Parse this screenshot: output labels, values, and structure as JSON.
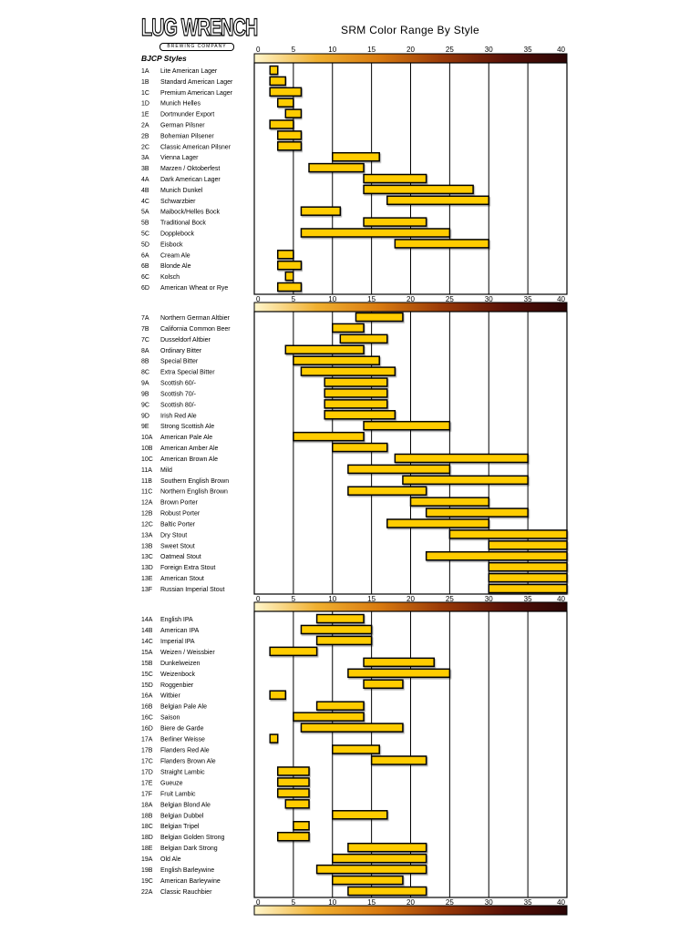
{
  "logo": {
    "main": "LUG WRENCH",
    "sub": "BREWING COMPANY"
  },
  "chart_data": {
    "type": "bar",
    "subtype": "floating-range-horizontal",
    "title": "SRM Color Range By Style",
    "category_header": "BJCP Styles",
    "xlim": [
      0,
      40
    ],
    "xticks": [
      0,
      5,
      10,
      15,
      20,
      25,
      30,
      35,
      40
    ],
    "grid": true,
    "colors": {
      "bar": "#ffcc00",
      "bar_outline": "#000000",
      "gradient": [
        "#fff6cc",
        "#f0b030",
        "#d87a10",
        "#9a3a08",
        "#5a1208",
        "#2a0505"
      ]
    },
    "panels": [
      {
        "rows": [
          {
            "code": "1A",
            "name": "Lite American Lager",
            "min": 2,
            "max": 3
          },
          {
            "code": "1B",
            "name": "Standard American Lager",
            "min": 2,
            "max": 4
          },
          {
            "code": "1C",
            "name": "Premium American Lager",
            "min": 2,
            "max": 6
          },
          {
            "code": "1D",
            "name": "Munich Helles",
            "min": 3,
            "max": 5
          },
          {
            "code": "1E",
            "name": "Dortmunder Export",
            "min": 4,
            "max": 6
          },
          {
            "code": "2A",
            "name": "German Pilsner",
            "min": 2,
            "max": 5
          },
          {
            "code": "2B",
            "name": "Bohemian Pilsener",
            "min": 3,
            "max": 6
          },
          {
            "code": "2C",
            "name": "Classic American Pilsner",
            "min": 3,
            "max": 6
          },
          {
            "code": "3A",
            "name": "Vienna Lager",
            "min": 10,
            "max": 16
          },
          {
            "code": "3B",
            "name": "Marzen / Oktoberfest",
            "min": 7,
            "max": 14
          },
          {
            "code": "4A",
            "name": "Dark American Lager",
            "min": 14,
            "max": 22
          },
          {
            "code": "4B",
            "name": "Munich Dunkel",
            "min": 14,
            "max": 28
          },
          {
            "code": "4C",
            "name": "Schwarzbier",
            "min": 17,
            "max": 30
          },
          {
            "code": "5A",
            "name": "Maibock/Helles Bock",
            "min": 6,
            "max": 11
          },
          {
            "code": "5B",
            "name": "Traditional Bock",
            "min": 14,
            "max": 22
          },
          {
            "code": "5C",
            "name": "Dopplebock",
            "min": 6,
            "max": 25
          },
          {
            "code": "5D",
            "name": "Eisbock",
            "min": 18,
            "max": 30
          },
          {
            "code": "6A",
            "name": "Cream Ale",
            "min": 3,
            "max": 5
          },
          {
            "code": "6B",
            "name": "Blonde Ale",
            "min": 3,
            "max": 6
          },
          {
            "code": "6C",
            "name": "Kolsch",
            "min": 4,
            "max": 5
          },
          {
            "code": "6D",
            "name": "American Wheat or Rye",
            "min": 3,
            "max": 6
          }
        ]
      },
      {
        "rows": [
          {
            "code": "7A",
            "name": "Northern German Altbier",
            "min": 13,
            "max": 19
          },
          {
            "code": "7B",
            "name": "California Common Beer",
            "min": 10,
            "max": 14
          },
          {
            "code": "7C",
            "name": "Dusseldorf Altbier",
            "min": 11,
            "max": 17
          },
          {
            "code": "8A",
            "name": "Ordinary Bitter",
            "min": 4,
            "max": 14
          },
          {
            "code": "8B",
            "name": "Special Bitter",
            "min": 5,
            "max": 16
          },
          {
            "code": "8C",
            "name": "Extra Special Bitter",
            "min": 6,
            "max": 18
          },
          {
            "code": "9A",
            "name": "Scottish 60/-",
            "min": 9,
            "max": 17
          },
          {
            "code": "9B",
            "name": "Scottish 70/-",
            "min": 9,
            "max": 17
          },
          {
            "code": "9C",
            "name": "Scottish 80/-",
            "min": 9,
            "max": 17
          },
          {
            "code": "9D",
            "name": "Irish Red Ale",
            "min": 9,
            "max": 18
          },
          {
            "code": "9E",
            "name": "Strong Scottish Ale",
            "min": 14,
            "max": 25
          },
          {
            "code": "10A",
            "name": "American Pale Ale",
            "min": 5,
            "max": 14
          },
          {
            "code": "10B",
            "name": "American Amber Ale",
            "min": 10,
            "max": 17
          },
          {
            "code": "10C",
            "name": "American Brown Ale",
            "min": 18,
            "max": 35
          },
          {
            "code": "11A",
            "name": "Mild",
            "min": 12,
            "max": 25
          },
          {
            "code": "11B",
            "name": "Southern English Brown",
            "min": 19,
            "max": 35
          },
          {
            "code": "11C",
            "name": "Northern English Brown",
            "min": 12,
            "max": 22
          },
          {
            "code": "12A",
            "name": "Brown Porter",
            "min": 20,
            "max": 30
          },
          {
            "code": "12B",
            "name": "Robust Porter",
            "min": 22,
            "max": 35
          },
          {
            "code": "12C",
            "name": "Baltic Porter",
            "min": 17,
            "max": 30
          },
          {
            "code": "13A",
            "name": "Dry Stout",
            "min": 25,
            "max": 40
          },
          {
            "code": "13B",
            "name": "Sweet Stout",
            "min": 30,
            "max": 40
          },
          {
            "code": "13C",
            "name": "Oatmeal Stout",
            "min": 22,
            "max": 40
          },
          {
            "code": "13D",
            "name": "Foreign Extra Stout",
            "min": 30,
            "max": 40
          },
          {
            "code": "13E",
            "name": "American Stout",
            "min": 30,
            "max": 40
          },
          {
            "code": "13F",
            "name": "Russian Imperial Stout",
            "min": 30,
            "max": 40
          }
        ]
      },
      {
        "rows": [
          {
            "code": "14A",
            "name": "English IPA",
            "min": 8,
            "max": 14
          },
          {
            "code": "14B",
            "name": "American IPA",
            "min": 6,
            "max": 15
          },
          {
            "code": "14C",
            "name": "Imperial IPA",
            "min": 8,
            "max": 15
          },
          {
            "code": "15A",
            "name": "Weizen / Weissbier",
            "min": 2,
            "max": 8
          },
          {
            "code": "15B",
            "name": "Dunkelweizen",
            "min": 14,
            "max": 23
          },
          {
            "code": "15C",
            "name": "Weizenbock",
            "min": 12,
            "max": 25
          },
          {
            "code": "15D",
            "name": "Roggenbier",
            "min": 14,
            "max": 19
          },
          {
            "code": "16A",
            "name": "Witbier",
            "min": 2,
            "max": 4
          },
          {
            "code": "16B",
            "name": "Belgian Pale Ale",
            "min": 8,
            "max": 14
          },
          {
            "code": "16C",
            "name": "Saison",
            "min": 5,
            "max": 14
          },
          {
            "code": "16D",
            "name": "Biere de Garde",
            "min": 6,
            "max": 19
          },
          {
            "code": "17A",
            "name": "Berliner Weisse",
            "min": 2,
            "max": 3
          },
          {
            "code": "17B",
            "name": "Flanders Red Ale",
            "min": 10,
            "max": 16
          },
          {
            "code": "17C",
            "name": "Flanders Brown Ale",
            "min": 15,
            "max": 22
          },
          {
            "code": "17D",
            "name": "Straight Lambic",
            "min": 3,
            "max": 7
          },
          {
            "code": "17E",
            "name": "Gueuze",
            "min": 3,
            "max": 7
          },
          {
            "code": "17F",
            "name": "Fruit Lambic",
            "min": 3,
            "max": 7
          },
          {
            "code": "18A",
            "name": "Belgian Blond Ale",
            "min": 4,
            "max": 7
          },
          {
            "code": "18B",
            "name": "Belgian Dubbel",
            "min": 10,
            "max": 17
          },
          {
            "code": "18C",
            "name": "Belgian Tripel",
            "min": 5,
            "max": 7
          },
          {
            "code": "18D",
            "name": "Belgian Golden Strong",
            "min": 3,
            "max": 7
          },
          {
            "code": "18E",
            "name": "Belgian Dark Strong",
            "min": 12,
            "max": 22
          },
          {
            "code": "19A",
            "name": "Old Ale",
            "min": 10,
            "max": 22
          },
          {
            "code": "19B",
            "name": "English Barleywine",
            "min": 8,
            "max": 22
          },
          {
            "code": "19C",
            "name": "American Barleywine",
            "min": 10,
            "max": 19
          },
          {
            "code": "22A",
            "name": "Classic Rauchbier",
            "min": 12,
            "max": 22
          }
        ]
      }
    ]
  }
}
